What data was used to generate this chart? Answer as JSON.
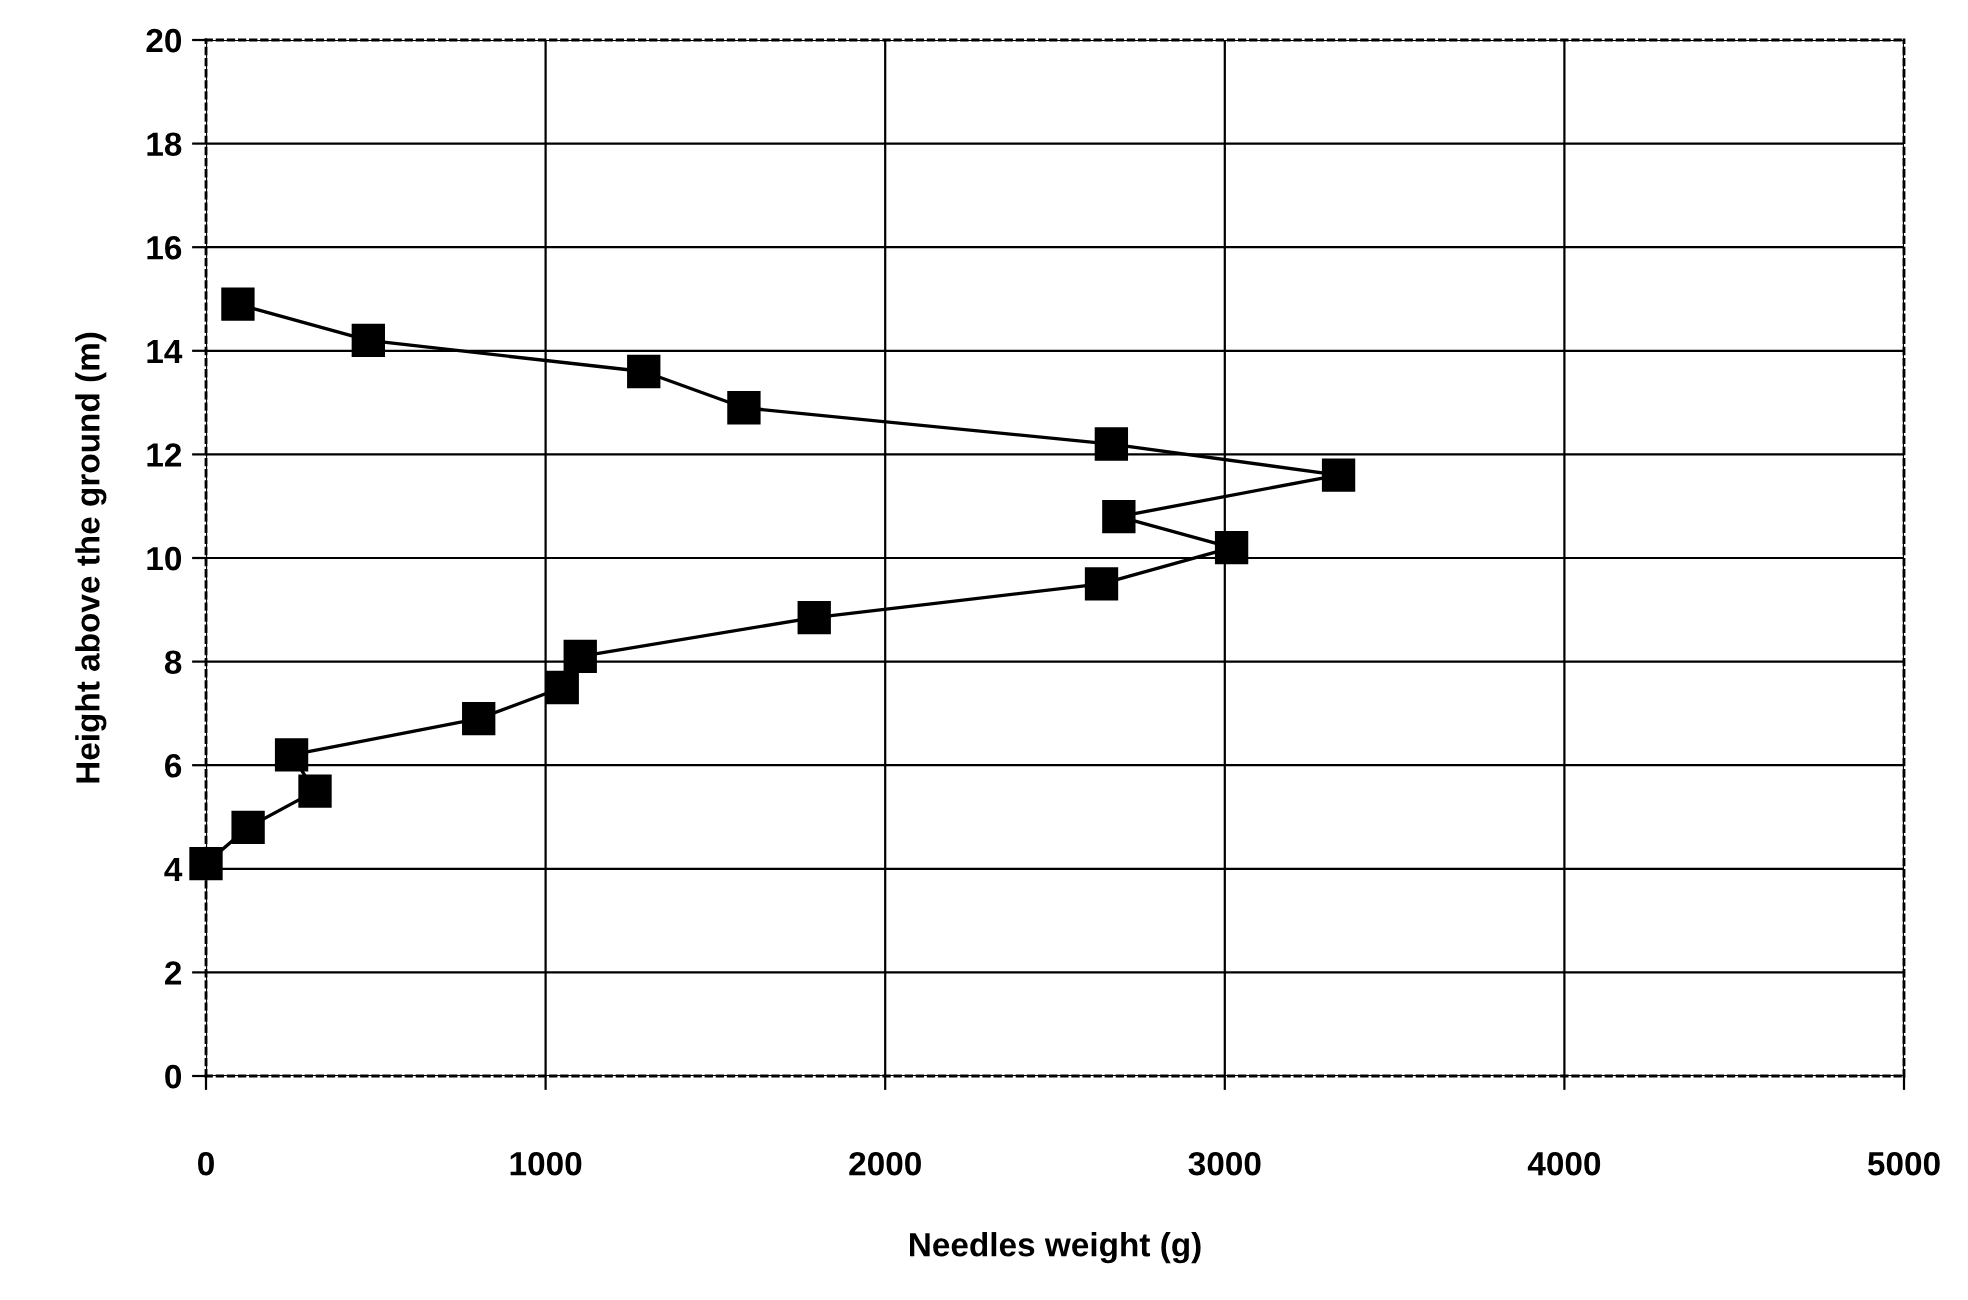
{
  "chart_data": {
    "type": "line",
    "xlabel": "Needles weight (g)",
    "ylabel": "Height above the ground (m)",
    "series": [
      {
        "color": "#000000",
        "x": [
          0,
          124,
          321,
          252,
          803,
          1049,
          1102,
          1791,
          2637,
          3020,
          2688,
          3335,
          2666,
          1584,
          1289,
          478,
          94
        ],
        "values": [
          4.1,
          4.8,
          5.5,
          6.2,
          6.9,
          7.5,
          8.1,
          8.85,
          9.5,
          10.2,
          10.8,
          11.6,
          12.2,
          12.9,
          13.6,
          14.2,
          14.9
        ]
      }
    ],
    "xlim": [
      0,
      5000
    ],
    "xticks": [
      0,
      1000,
      2000,
      3000,
      4000,
      5000
    ],
    "ylim": [
      0,
      20
    ],
    "yticks": [
      0,
      2,
      4,
      6,
      8,
      10,
      12,
      14,
      16,
      18,
      20
    ],
    "grid": true,
    "marker": "square",
    "line_style": "solid"
  }
}
